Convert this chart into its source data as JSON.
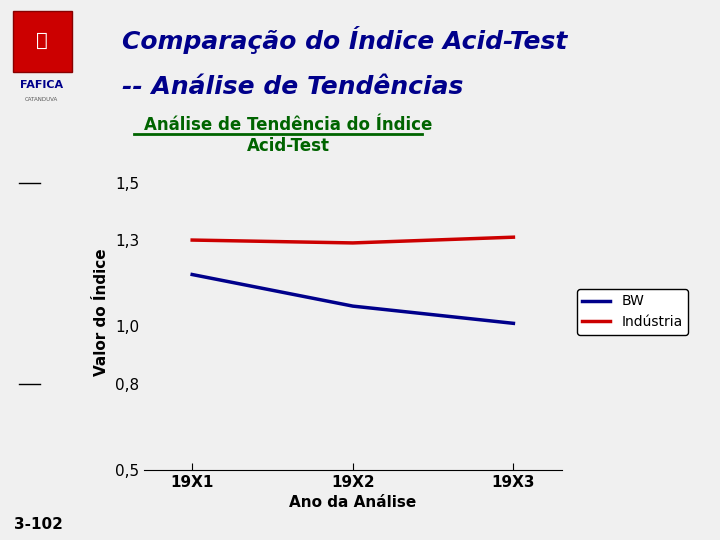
{
  "title_line1": "Comparação do Índice Acid-Test",
  "title_line2": "-- Análise de Tendências",
  "chart_title_line1": "Análise de Tendência do Índice",
  "chart_title_line2": "Acid-Test",
  "xlabel": "Ano da Análise",
  "ylabel": "Valor do Índice",
  "x_labels": [
    "19X1",
    "19X2",
    "19X3"
  ],
  "x_values": [
    0,
    1,
    2
  ],
  "bw_values": [
    1.18,
    1.07,
    1.01
  ],
  "industria_values": [
    1.3,
    1.29,
    1.31
  ],
  "ylim": [
    0.5,
    1.6
  ],
  "yticks": [
    0.5,
    0.8,
    1.0,
    1.3,
    1.5
  ],
  "ytick_labels": [
    "0,5",
    "0,8",
    "1,0",
    "1,3",
    "1,5"
  ],
  "bw_color": "#00008B",
  "industria_color": "#CC0000",
  "title_color": "#00008B",
  "chart_title_color": "#006400",
  "bg_color": "#F0F0F0",
  "separator_color_blue": "#0000CC",
  "separator_color_gray": "#AAAAAA",
  "footer_text": "3-102",
  "legend_bw": "BW",
  "legend_industria": "Indústria"
}
